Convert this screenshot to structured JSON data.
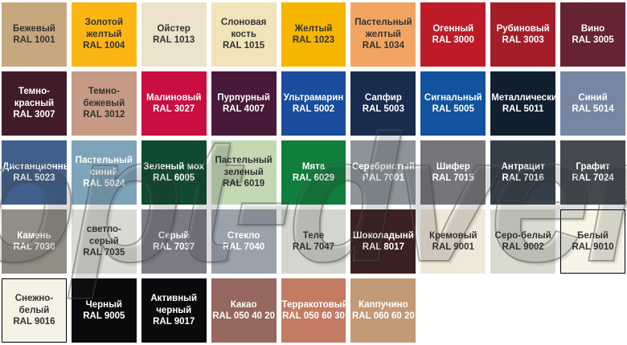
{
  "watermark": {
    "text": "opt-dveri.ru"
  },
  "palette": {
    "cells": [
      {
        "name": "Бежевый",
        "code": "RAL 1001",
        "color": "#C7A87E",
        "text": "dark",
        "border": false
      },
      {
        "name": "Золотой желтый",
        "code": "RAL 1004",
        "color": "#FCB614",
        "text": "dark",
        "border": false
      },
      {
        "name": "Ойстер",
        "code": "RAL 1013",
        "color": "#EDE3CC",
        "text": "dark",
        "border": false
      },
      {
        "name": "Слоновая кость",
        "code": "RAL 1015",
        "color": "#F1E3BA",
        "text": "dark",
        "border": false
      },
      {
        "name": "Желтый",
        "code": "RAL 1023",
        "color": "#F6B600",
        "text": "dark",
        "border": false
      },
      {
        "name": "Пастельный желтый",
        "code": "RAL 1034",
        "color": "#F2A562",
        "text": "dark",
        "border": false
      },
      {
        "name": "Огенный",
        "code": "RAL 3000",
        "color": "#BE1B28",
        "text": "light",
        "border": false
      },
      {
        "name": "Рубиновый",
        "code": "RAL 3003",
        "color": "#A41E29",
        "text": "light",
        "border": false
      },
      {
        "name": "Вино",
        "code": "RAL 3005",
        "color": "#662431",
        "text": "light",
        "border": false
      },
      {
        "name": "Темно-красный",
        "code": "RAL 3007",
        "color": "#401C2B",
        "text": "light",
        "border": false
      },
      {
        "name": "Темно-бежевый",
        "code": "RAL 3012",
        "color": "#C69A85",
        "text": "dark",
        "border": false
      },
      {
        "name": "Малиновый",
        "code": "RAL 3027",
        "color": "#CA0E3F",
        "text": "light",
        "border": false
      },
      {
        "name": "Пурпурный",
        "code": "RAL 4007",
        "color": "#491939",
        "text": "light",
        "border": false
      },
      {
        "name": "Ультрамарин",
        "code": "RAL 5002",
        "color": "#1A4D9D",
        "text": "light",
        "border": false
      },
      {
        "name": "Сапфир",
        "code": "RAL 5003",
        "color": "#1A2C4D",
        "text": "light",
        "border": false
      },
      {
        "name": "Сигнальный",
        "code": "RAL 5005",
        "color": "#11539E",
        "text": "light",
        "border": false
      },
      {
        "name": "Металлический",
        "code": "RAL 5011",
        "color": "#11202E",
        "text": "light",
        "border": false
      },
      {
        "name": "Синий",
        "code": "RAL 5014",
        "color": "#7787A3",
        "text": "light",
        "border": false
      },
      {
        "name": "Дистанционный",
        "code": "RAL 5023",
        "color": "#41618C",
        "text": "light",
        "border": false
      },
      {
        "name": "Пастельный синий",
        "code": "RAL 5024",
        "color": "#7EA4BA",
        "text": "light",
        "border": false
      },
      {
        "name": "Зеленый мох",
        "code": "RAL 6005",
        "color": "#0F4A31",
        "text": "light",
        "border": false
      },
      {
        "name": "Пастельный зеленый",
        "code": "RAL 6019",
        "color": "#C3D8B3",
        "text": "dark",
        "border": false
      },
      {
        "name": "Мята",
        "code": "RAL 6029",
        "color": "#107E3C",
        "text": "light",
        "border": false
      },
      {
        "name": "Серебристый",
        "code": "RAL 7001",
        "color": "#8C949A",
        "text": "light",
        "border": false
      },
      {
        "name": "Шифер",
        "code": "RAL 7015",
        "color": "#777579",
        "text": "light",
        "border": false
      },
      {
        "name": "Антрацит",
        "code": "RAL 7016",
        "color": "#353F49",
        "text": "light",
        "border": false
      },
      {
        "name": "Графит",
        "code": "RAL 7024",
        "color": "#44484F",
        "text": "light",
        "border": false
      },
      {
        "name": "Камень",
        "code": "RAL 7030",
        "color": "#928E84",
        "text": "light",
        "border": false
      },
      {
        "name": "светло-серый",
        "code": "RAL 7035",
        "color": "#D8DAD3",
        "text": "dark",
        "border": false
      },
      {
        "name": "Серый",
        "code": "RAL 7037",
        "color": "#7A7B85",
        "text": "light",
        "border": false
      },
      {
        "name": "Стекло",
        "code": "RAL 7040",
        "color": "#9AA2AC",
        "text": "light",
        "border": false
      },
      {
        "name": "Теле",
        "code": "RAL 7047",
        "color": "#D3D5CF",
        "text": "dark",
        "border": false
      },
      {
        "name": "Шоколадынй",
        "code": "RAL 8017",
        "color": "#3B2221",
        "text": "light",
        "border": false
      },
      {
        "name": "Кремовый",
        "code": "RAL 9001",
        "color": "#F0E9DA",
        "text": "dark",
        "border": false
      },
      {
        "name": "Серо-белый",
        "code": "RAL 9002",
        "color": "#D9DBCF",
        "text": "dark",
        "border": false
      },
      {
        "name": "Белый",
        "code": "RAL 9010",
        "color": "#F7F5E7",
        "text": "dark",
        "border": true
      },
      {
        "name": "Снежно-белый",
        "code": "RAL 9016",
        "color": "#F5F3E5",
        "text": "dark",
        "border": true
      },
      {
        "name": "Черный",
        "code": "RAL 9005",
        "color": "#0A0A0C",
        "text": "light",
        "border": false
      },
      {
        "name": "Активный черный",
        "code": "RAL 9017",
        "color": "#0B0B0E",
        "text": "light",
        "border": false
      },
      {
        "name": "Какао",
        "code": "RAL 050 40 20",
        "color": "#96675E",
        "text": "light",
        "border": false
      },
      {
        "name": "Терракотовый",
        "code": "RAL 050 60 30",
        "color": "#C37B63",
        "text": "light",
        "border": false
      },
      {
        "name": "Каппучино",
        "code": "RAL 060 60 20",
        "color": "#C29A75",
        "text": "light",
        "border": false
      }
    ]
  }
}
